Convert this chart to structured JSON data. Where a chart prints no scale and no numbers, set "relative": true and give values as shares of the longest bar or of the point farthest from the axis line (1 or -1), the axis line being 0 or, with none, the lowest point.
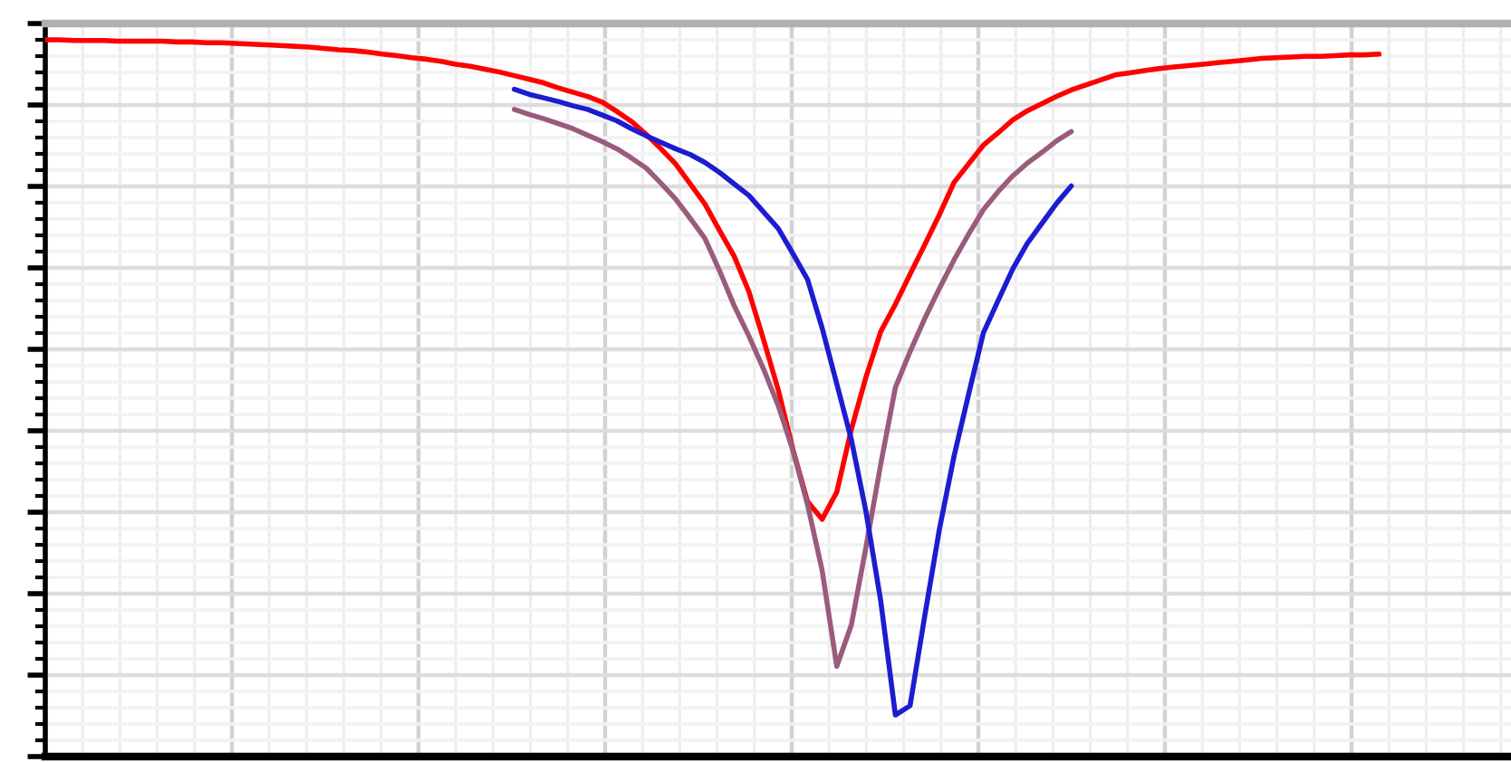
{
  "chart_data": {
    "type": "line",
    "relative": true,
    "grid": true,
    "categories": [
      null,
      null,
      null,
      null,
      null,
      null,
      null,
      null,
      null,
      null,
      null,
      null,
      null,
      null,
      null,
      null,
      null,
      null,
      null,
      null,
      null,
      null,
      null,
      null,
      null,
      null,
      null,
      null,
      null,
      null,
      null,
      null,
      null,
      null,
      null,
      null,
      null,
      null,
      null,
      null,
      null,
      null,
      null,
      null,
      null,
      null,
      null,
      null,
      null,
      null,
      null,
      null,
      null,
      null,
      null,
      null,
      null,
      null,
      null,
      null,
      null,
      null,
      null,
      null,
      null,
      null,
      null,
      null,
      null,
      null,
      null,
      null,
      null,
      null,
      null,
      null,
      null,
      null,
      null,
      null,
      null,
      null,
      null,
      null,
      null,
      null,
      null,
      null,
      null,
      null,
      null,
      null,
      null,
      null,
      null,
      null,
      null,
      null,
      null,
      null,
      null
    ],
    "series": [
      {
        "color": "#ff0000",
        "values": [
          1.0,
          1.0,
          0.999,
          0.999,
          0.999,
          0.998,
          0.998,
          0.998,
          0.998,
          0.997,
          0.997,
          0.996,
          0.996,
          0.995,
          0.994,
          0.993,
          0.992,
          0.991,
          0.99,
          0.988,
          0.986,
          0.985,
          0.983,
          0.98,
          0.978,
          0.975,
          0.973,
          0.97,
          0.966,
          0.963,
          0.959,
          0.955,
          0.95,
          0.945,
          0.94,
          0.933,
          0.927,
          0.921,
          0.913,
          0.9,
          0.886,
          0.868,
          0.848,
          0.827,
          0.799,
          0.771,
          0.734,
          0.698,
          0.649,
          0.582,
          0.512,
          0.429,
          0.356,
          0.331,
          0.369,
          0.457,
          0.53,
          0.593,
          0.631,
          0.673,
          0.714,
          0.756,
          0.801,
          0.827,
          0.853,
          0.87,
          0.888,
          0.901,
          0.911,
          0.921,
          0.93,
          0.937,
          0.944,
          0.951,
          0.954,
          0.957,
          0.96,
          0.962,
          0.964,
          0.966,
          0.968,
          0.97,
          0.972,
          0.974,
          0.975,
          0.976,
          0.977,
          0.977,
          0.978,
          0.979,
          0.979,
          0.98,
          null,
          null,
          null,
          null,
          null,
          null,
          null,
          null,
          null
        ]
      },
      {
        "color": "#9a5b7c",
        "values": [
          null,
          null,
          null,
          null,
          null,
          null,
          null,
          null,
          null,
          null,
          null,
          null,
          null,
          null,
          null,
          null,
          null,
          null,
          null,
          null,
          null,
          null,
          null,
          null,
          null,
          null,
          null,
          null,
          null,
          null,
          null,
          null,
          0.903,
          0.896,
          0.89,
          0.883,
          0.876,
          0.867,
          0.858,
          0.848,
          0.835,
          0.821,
          0.8,
          0.778,
          0.751,
          0.723,
          0.678,
          0.629,
          0.587,
          0.541,
          0.49,
          0.428,
          0.352,
          0.26,
          0.126,
          0.184,
          0.293,
          0.408,
          0.515,
          0.565,
          0.611,
          0.653,
          0.693,
          0.729,
          0.763,
          0.788,
          0.81,
          0.828,
          0.843,
          0.859,
          0.872,
          null,
          null,
          null,
          null,
          null,
          null,
          null,
          null,
          null,
          null,
          null,
          null,
          null,
          null,
          null,
          null,
          null,
          null,
          null,
          null,
          null,
          null,
          null,
          null,
          null,
          null,
          null,
          null,
          null,
          null
        ]
      },
      {
        "color": "#1c1cd0",
        "values": [
          null,
          null,
          null,
          null,
          null,
          null,
          null,
          null,
          null,
          null,
          null,
          null,
          null,
          null,
          null,
          null,
          null,
          null,
          null,
          null,
          null,
          null,
          null,
          null,
          null,
          null,
          null,
          null,
          null,
          null,
          null,
          null,
          0.931,
          0.924,
          0.919,
          0.914,
          0.908,
          0.903,
          0.895,
          0.887,
          0.876,
          0.866,
          0.857,
          0.848,
          0.84,
          0.829,
          0.815,
          0.799,
          0.783,
          0.76,
          0.737,
          0.702,
          0.666,
          0.598,
          0.52,
          0.442,
          0.341,
          0.217,
          0.058,
          0.071,
          0.196,
          0.317,
          0.419,
          0.506,
          0.591,
          0.636,
          0.68,
          0.716,
          0.744,
          0.772,
          0.796,
          null,
          null,
          null,
          null,
          null,
          null,
          null,
          null,
          null,
          null,
          null,
          null,
          null,
          null,
          null,
          null,
          null,
          null,
          null,
          null,
          null,
          null,
          null,
          null,
          null,
          null,
          null,
          null,
          null,
          null
        ]
      }
    ]
  }
}
